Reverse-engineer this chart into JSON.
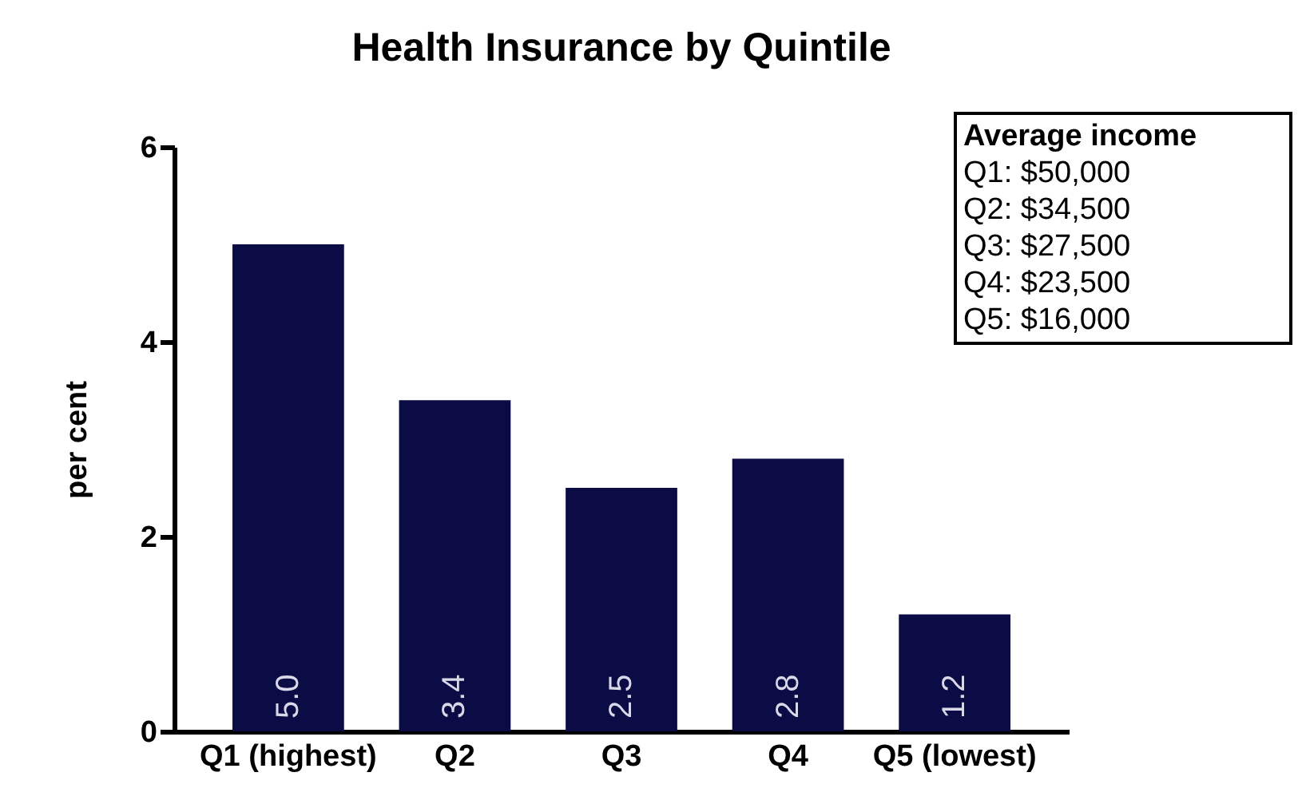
{
  "chart_data": {
    "type": "bar",
    "title": "Health Insurance by Quintile",
    "ylabel": "per cent",
    "categories": [
      "Q1 (highest)",
      "Q2",
      "Q3",
      "Q4",
      "Q5 (lowest)"
    ],
    "values": [
      5.0,
      3.4,
      2.5,
      2.8,
      1.2
    ],
    "value_labels": [
      "5.0",
      "3.4",
      "2.5",
      "2.8",
      "1.2"
    ],
    "color": "#0b0b45",
    "ylim": [
      0,
      6
    ],
    "yticks": [
      0,
      2,
      4,
      6
    ],
    "grid": false,
    "annotations": [
      "Average income",
      "Q1: $50,000",
      "Q2: $34,500",
      "Q3: $27,500",
      "Q4: $23,500",
      "Q5: $16,000"
    ]
  }
}
